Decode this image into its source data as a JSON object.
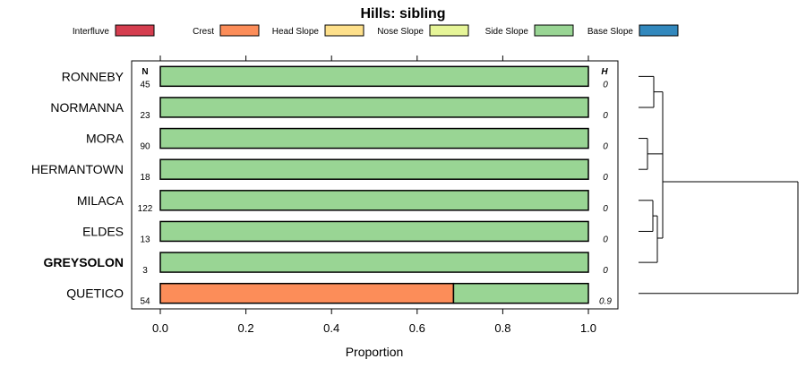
{
  "chart_data": {
    "type": "bar",
    "orientation": "horizontal",
    "stacked": true,
    "title": "Hills: sibling",
    "xlabel": "Proportion",
    "xlim": [
      0,
      1
    ],
    "xticks": [
      "0.0",
      "0.2",
      "0.4",
      "0.6",
      "0.8",
      "1.0"
    ],
    "n_header": "N",
    "h_header": "H",
    "legend": [
      {
        "name": "Interfluve",
        "color": "#D53E4F"
      },
      {
        "name": "Crest",
        "color": "#FC8D59"
      },
      {
        "name": "Head Slope",
        "color": "#FEE08B"
      },
      {
        "name": "Nose Slope",
        "color": "#E6F598"
      },
      {
        "name": "Side Slope",
        "color": "#99D594"
      },
      {
        "name": "Base Slope",
        "color": "#3288BD"
      }
    ],
    "categories": [
      "RONNEBY",
      "NORMANNA",
      "MORA",
      "HERMANTOWN",
      "MILACA",
      "ELDES",
      "GREYSOLON",
      "QUETICO"
    ],
    "highlighted": "GREYSOLON",
    "n": [
      "45",
      "23",
      "90",
      "18",
      "122",
      "13",
      "3",
      "54"
    ],
    "h": [
      "0",
      "0",
      "0",
      "0",
      "0",
      "0",
      "0",
      "0.9"
    ],
    "series": [
      {
        "name": "Interfluve",
        "values": [
          0,
          0,
          0,
          0,
          0,
          0,
          0,
          0
        ]
      },
      {
        "name": "Crest",
        "values": [
          0,
          0,
          0,
          0,
          0,
          0,
          0,
          0.685
        ]
      },
      {
        "name": "Head Slope",
        "values": [
          0,
          0,
          0,
          0,
          0,
          0,
          0,
          0
        ]
      },
      {
        "name": "Nose Slope",
        "values": [
          0,
          0,
          0,
          0,
          0,
          0,
          0,
          0
        ]
      },
      {
        "name": "Side Slope",
        "values": [
          1,
          1,
          1,
          1,
          1,
          1,
          1,
          0.315
        ]
      },
      {
        "name": "Base Slope",
        "values": [
          0,
          0,
          0,
          0,
          0,
          0,
          0,
          0
        ]
      }
    ],
    "dendrogram": {
      "leaves": [
        "RONNEBY",
        "NORMANNA",
        "MORA",
        "HERMANTOWN",
        "MILACA",
        "ELDES",
        "GREYSOLON",
        "QUETICO"
      ]
    }
  }
}
